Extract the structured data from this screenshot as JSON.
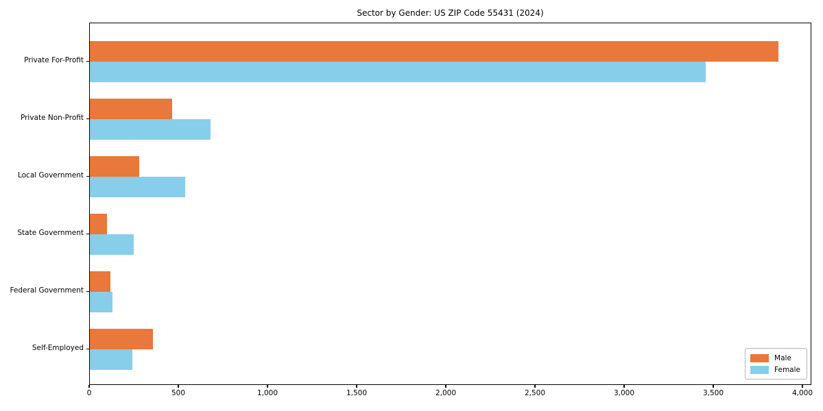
{
  "chart_data": {
    "type": "bar",
    "orientation": "horizontal",
    "title": "Sector by Gender: US ZIP Code 55431 (2024)",
    "categories": [
      "Private For-Profit",
      "Private Non-Profit",
      "Local Government",
      "State Government",
      "Federal Government",
      "Self-Employed"
    ],
    "series": [
      {
        "name": "Male",
        "color": "#E8783B",
        "values": [
          3860,
          460,
          275,
          95,
          115,
          355
        ]
      },
      {
        "name": "Female",
        "color": "#87CEEB",
        "values": [
          3455,
          675,
          535,
          245,
          125,
          240
        ]
      }
    ],
    "xlim": [
      0,
      4050
    ],
    "xticks": [
      0,
      500,
      1000,
      1500,
      2000,
      2500,
      3000,
      3500,
      4000
    ],
    "xtick_labels": [
      "0",
      "500",
      "1,000",
      "1,500",
      "2,000",
      "2,500",
      "3,000",
      "3,500",
      "4,000"
    ],
    "xlabel": "",
    "ylabel": "",
    "grid": false,
    "legend": {
      "position": "lower right",
      "entries": [
        "Male",
        "Female"
      ]
    },
    "plot_border_color": "#000000",
    "background_color": "#ffffff"
  }
}
